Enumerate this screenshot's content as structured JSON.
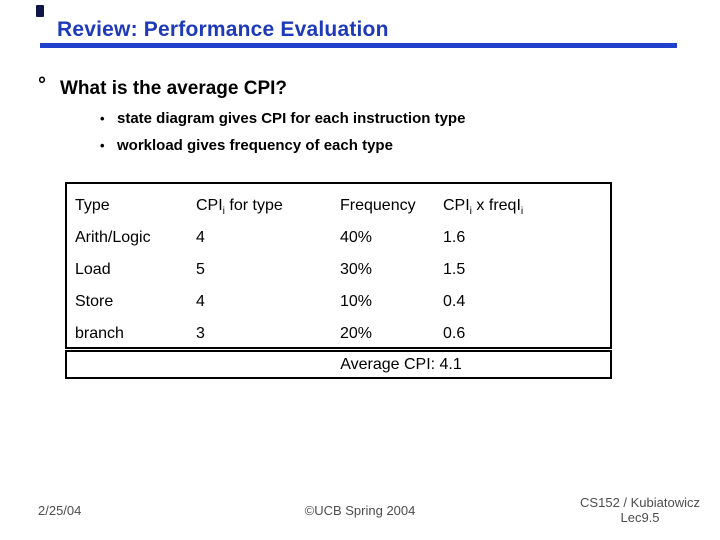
{
  "slide": {
    "title": "Review: Performance Evaluation",
    "accent_color": "#1e3ab8",
    "rule_color": "#2041cc"
  },
  "bullets": {
    "main_marker": "°",
    "main": "What is the average CPI?",
    "sub_marker": "•",
    "sub": [
      "state diagram gives CPI for each instruction type",
      "workload gives frequency of each type"
    ]
  },
  "table": {
    "headers": [
      {
        "pre": "Type",
        "sub1": "",
        "mid": "",
        "sub2": ""
      },
      {
        "pre": "CPI",
        "sub1": "i",
        "mid": " for type",
        "sub2": ""
      },
      {
        "pre": "Frequency",
        "sub1": "",
        "mid": "",
        "sub2": ""
      },
      {
        "pre": "CPI",
        "sub1": "i",
        "mid": " x freqI",
        "sub2": "i"
      }
    ],
    "rows": [
      {
        "type": "Arith/Logic",
        "cpi": "4",
        "frequency": "40%",
        "product": "1.6"
      },
      {
        "type": "Load",
        "cpi": "5",
        "frequency": "30%",
        "product": "1.5"
      },
      {
        "type": "Store",
        "cpi": "4",
        "frequency": "10%",
        "product": "0.4"
      },
      {
        "type": "branch",
        "cpi": "3",
        "frequency": "20%",
        "product": "0.6"
      }
    ],
    "summary": "Average CPI: 4.1"
  },
  "footer": {
    "date": "2/25/04",
    "copyright": "©UCB Spring 2004",
    "course": "CS152 / Kubiatowicz",
    "lecture": "Lec9.5"
  }
}
